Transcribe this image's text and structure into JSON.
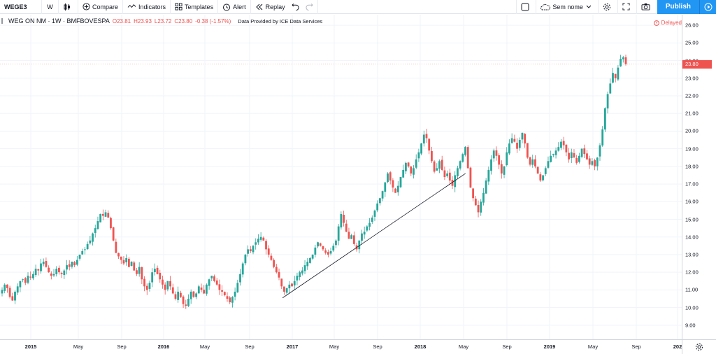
{
  "toolbar": {
    "symbol": "WEGE3",
    "interval": "W",
    "compare": "Compare",
    "indicators": "Indicators",
    "templates": "Templates",
    "alert": "Alert",
    "replay": "Replay",
    "layout_name": "Sem nome",
    "publish": "Publish"
  },
  "legend": {
    "title": "WEG ON NM · 1W · BMFBOVESPA",
    "open": "O23.81",
    "high": "H23.93",
    "low": "L23.72",
    "close": "C23.80",
    "change": "-0.38 (-1.57%)",
    "provider": "Data Provided by ICE Data Services"
  },
  "delayed_label": "Delayed",
  "colors": {
    "up": "#26a69a",
    "down": "#ef5350",
    "accent": "#2196f3"
  },
  "chart_data": {
    "type": "candlestick",
    "title": "WEG ON NM · 1W · BMFBOVESPA",
    "y_ticks": [
      "26.00",
      "25.00",
      "24.00",
      "23.00",
      "22.00",
      "21.00",
      "20.00",
      "19.00",
      "18.00",
      "17.00",
      "16.00",
      "15.00",
      "14.00",
      "13.00",
      "12.00",
      "11.00",
      "10.00",
      "9.00"
    ],
    "ylim": [
      8.2,
      26.6
    ],
    "x_ticks": [
      "2015",
      "May",
      "Sep",
      "2016",
      "May",
      "Sep",
      "2017",
      "May",
      "Sep",
      "2018",
      "May",
      "Sep",
      "2019",
      "May",
      "Sep",
      "202"
    ],
    "last_price": "23.80",
    "close_series": [
      11.0,
      11.3,
      11.1,
      10.6,
      10.4,
      10.9,
      11.2,
      11.5,
      11.6,
      11.4,
      11.8,
      11.7,
      11.9,
      12.2,
      12.1,
      12.5,
      12.6,
      12.3,
      12.0,
      11.8,
      11.9,
      12.2,
      12.0,
      11.9,
      12.1,
      12.4,
      12.3,
      12.6,
      12.4,
      12.7,
      13.0,
      13.2,
      13.3,
      13.6,
      13.8,
      14.2,
      14.5,
      14.9,
      15.3,
      15.2,
      15.4,
      15.1,
      14.5,
      13.8,
      13.1,
      12.9,
      12.7,
      12.5,
      12.8,
      12.3,
      12.6,
      12.1,
      11.9,
      12.3,
      11.6,
      11.2,
      11.0,
      11.4,
      12.0,
      12.2,
      11.9,
      11.6,
      11.3,
      11.0,
      11.5,
      11.2,
      10.8,
      10.5,
      10.9,
      10.6,
      10.2,
      10.1,
      10.5,
      10.9,
      10.6,
      10.8,
      11.2,
      11.0,
      10.8,
      11.3,
      11.6,
      11.8,
      11.5,
      11.3,
      11.0,
      10.9,
      10.7,
      10.5,
      10.3,
      10.6,
      10.9,
      11.4,
      11.9,
      12.5,
      13.0,
      13.3,
      13.2,
      13.5,
      13.7,
      13.9,
      14.0,
      13.8,
      13.3,
      13.0,
      12.7,
      12.3,
      12.0,
      11.7,
      11.2,
      10.9,
      11.1,
      11.3,
      11.2,
      11.5,
      11.8,
      12.0,
      12.1,
      12.4,
      12.6,
      12.8,
      13.0,
      13.4,
      13.7,
      13.5,
      13.3,
      13.1,
      13.0,
      13.2,
      13.5,
      13.8,
      14.6,
      15.3,
      14.8,
      14.3,
      13.9,
      14.1,
      13.6,
      13.3,
      13.8,
      14.2,
      14.3,
      14.6,
      14.8,
      15.1,
      15.5,
      15.9,
      16.2,
      16.6,
      17.1,
      17.6,
      17.2,
      16.8,
      16.5,
      16.9,
      17.4,
      17.8,
      18.2,
      18.0,
      17.6,
      17.9,
      18.4,
      18.8,
      19.3,
      19.8,
      19.6,
      18.9,
      18.3,
      17.7,
      17.9,
      18.3,
      17.8,
      17.4,
      17.6,
      17.2,
      16.9,
      17.5,
      17.9,
      18.3,
      18.7,
      19.1,
      17.9,
      16.8,
      16.2,
      15.8,
      15.4,
      16.0,
      16.5,
      17.2,
      17.8,
      18.4,
      18.9,
      18.6,
      18.1,
      17.6,
      18.0,
      18.8,
      19.3,
      19.6,
      19.4,
      19.0,
      19.5,
      19.9,
      19.3,
      18.5,
      18.1,
      18.4,
      18.0,
      17.6,
      17.2,
      17.5,
      17.9,
      18.3,
      18.6,
      18.7,
      18.9,
      19.1,
      19.4,
      19.2,
      18.8,
      18.4,
      18.8,
      18.5,
      18.2,
      18.6,
      19.0,
      18.7,
      18.4,
      18.1,
      18.3,
      18.0,
      18.5,
      19.2,
      20.1,
      21.3,
      22.1,
      22.7,
      23.3,
      23.0,
      23.6,
      24.1,
      24.18,
      23.8
    ]
  },
  "drawing": {
    "type": "trend-line",
    "from": [
      "2016-Dec",
      10.55
    ],
    "to": [
      "2018-May",
      17.6
    ]
  }
}
